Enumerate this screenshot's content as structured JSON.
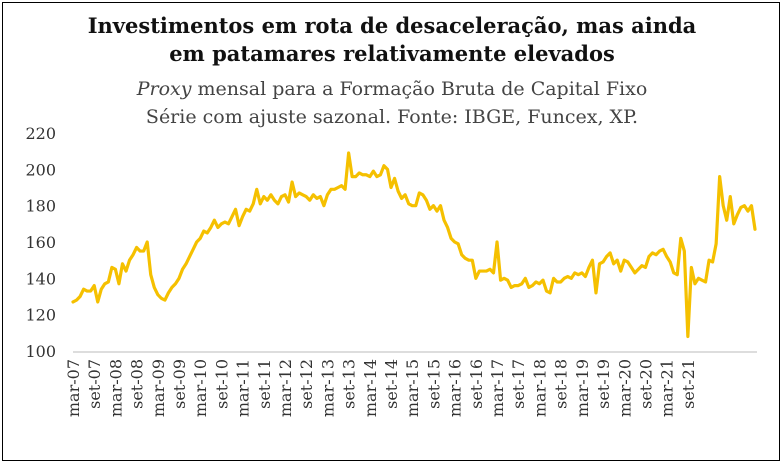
{
  "title_line1": "Investimentos em rota de desaceleração, mas ainda",
  "title_line2": "em patamares relativamente elevados",
  "subtitle_italic": "Proxy",
  "subtitle_line1_rest": " mensal para a Formação Bruta de Capital Fixo",
  "subtitle_line2": "Série com ajuste sazonal. Fonte: IBGE, Funcex, XP.",
  "colors": {
    "line": "#F5C000",
    "text": "#333333",
    "title": "#111111"
  },
  "chart_data": {
    "type": "line",
    "title": "Investimentos em rota de desaceleração, mas ainda em patamares relativamente elevados",
    "subtitle": "Proxy mensal para a Formação Bruta de Capital Fixo — Série com ajuste sazonal. Fonte: IBGE, Funcex, XP.",
    "xlabel": "",
    "ylabel": "",
    "ylim": [
      100,
      220
    ],
    "yticks": [
      100,
      120,
      140,
      160,
      180,
      200,
      220
    ],
    "grid": false,
    "legend": "none",
    "x_start": "mar-07",
    "x_end": "set-21",
    "xtick_labels": [
      "mar-07",
      "set-07",
      "mar-08",
      "set-08",
      "mar-09",
      "set-09",
      "mar-10",
      "set-10",
      "mar-11",
      "set-11",
      "mar-12",
      "set-12",
      "mar-13",
      "set-13",
      "mar-14",
      "set-14",
      "mar-15",
      "set-15",
      "mar-16",
      "set-16",
      "mar-17",
      "set-17",
      "mar-18",
      "set-18",
      "mar-19",
      "set-19",
      "mar-20",
      "set-20",
      "mar-21",
      "set-21"
    ],
    "series": [
      {
        "values": [
          127,
          128,
          130,
          134,
          133,
          133,
          136,
          127,
          134,
          137,
          138,
          146,
          145,
          137,
          148,
          144,
          150,
          153,
          157,
          155,
          155,
          160,
          142,
          135,
          131,
          129,
          128,
          132,
          135,
          137,
          140,
          145,
          148,
          152,
          156,
          160,
          162,
          166,
          165,
          168,
          172,
          168,
          170,
          171,
          170,
          174,
          178,
          169,
          174,
          178,
          177,
          181,
          189,
          181,
          185,
          183,
          186,
          183,
          181,
          185,
          186,
          182,
          193,
          185,
          187,
          186,
          185,
          183,
          186,
          184,
          185,
          180,
          186,
          189,
          189,
          190,
          191,
          189,
          209,
          196,
          196,
          198,
          197,
          197,
          196,
          199,
          196,
          197,
          202,
          200,
          190,
          195,
          188,
          184,
          186,
          181,
          180,
          180,
          187,
          186,
          183,
          178,
          180,
          177,
          180,
          172,
          168,
          162,
          160,
          159,
          153,
          151,
          150,
          150,
          140,
          144,
          144,
          144,
          145,
          143,
          160,
          139,
          140,
          139,
          135,
          136,
          136,
          137,
          140,
          135,
          136,
          138,
          137,
          139,
          133,
          132,
          140,
          138,
          138,
          140,
          141,
          140,
          143,
          142,
          143,
          141,
          146,
          150,
          132,
          148,
          149,
          152,
          154,
          148,
          150,
          144,
          150,
          149,
          146,
          143,
          145,
          147,
          146,
          152,
          154,
          153,
          155,
          156,
          152,
          149,
          143,
          142,
          162,
          155,
          108,
          146,
          137,
          140,
          139,
          138,
          150,
          149,
          159,
          196,
          180,
          172,
          185,
          170,
          175,
          179,
          180,
          177,
          180,
          167
        ]
      }
    ]
  }
}
